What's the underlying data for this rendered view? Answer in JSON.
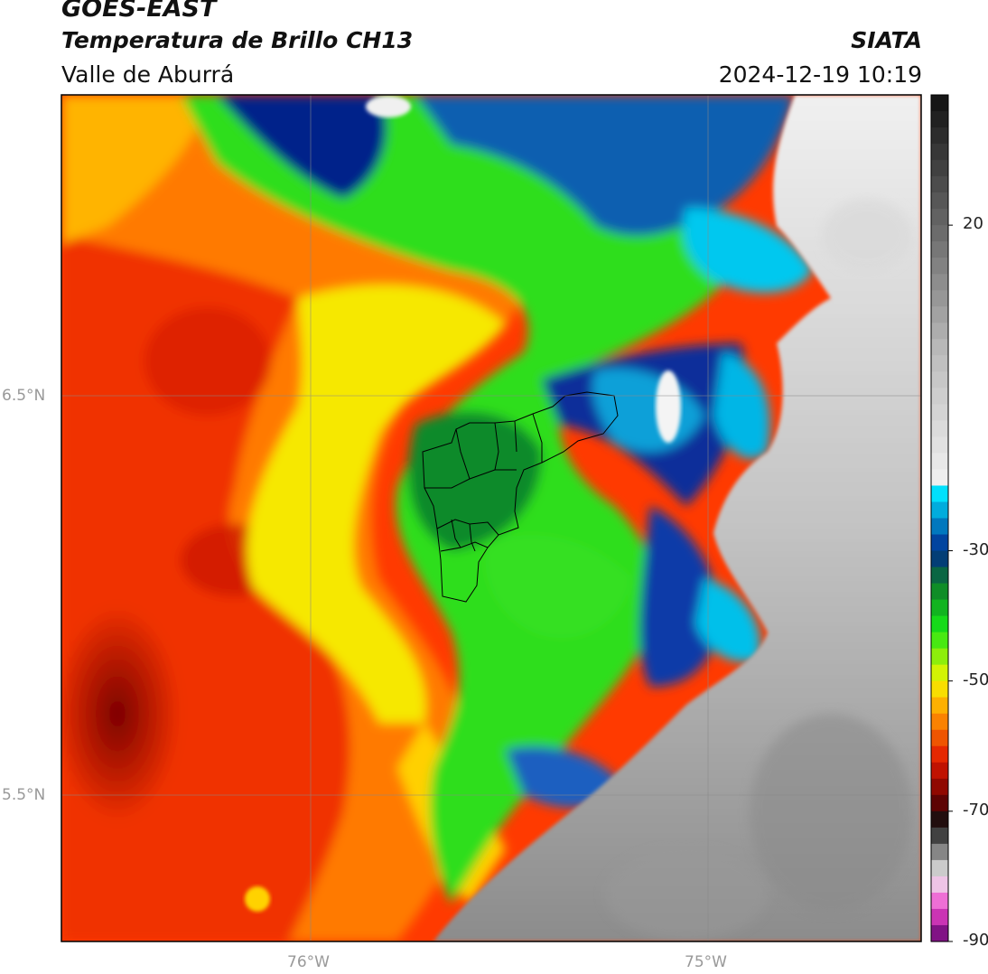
{
  "header": {
    "satellite": "GOES-EAST",
    "product": "Temperatura de Brillo CH13",
    "region": "Valle de Aburrá",
    "organization": "SIATA",
    "datetime": "2024-12-19 10:19"
  },
  "map": {
    "lat_labels": [
      "6.5°N",
      "5.5°N"
    ],
    "lon_labels": [
      "76°W",
      "75°W"
    ],
    "lat_range": [
      5.13,
      7.25
    ],
    "lon_range": [
      -76.62,
      -74.47
    ],
    "gridlines": true
  },
  "colorbar": {
    "unit_note": "",
    "ticks": [
      "20",
      "-30",
      "-50",
      "-70",
      "-90"
    ],
    "tick_values": [
      20,
      -30,
      -50,
      -70,
      -90
    ],
    "range": [
      -90,
      40
    ],
    "palette_stops": [
      {
        "value": 40,
        "color": "#111111"
      },
      {
        "value": 0,
        "color": "#bdbdbd"
      },
      {
        "value": -20,
        "color": "#f2f2f2"
      },
      {
        "value": -21,
        "color": "#00e5ff"
      },
      {
        "value": -30,
        "color": "#002a8f"
      },
      {
        "value": -35,
        "color": "#0d7a2a"
      },
      {
        "value": -42,
        "color": "#17e617"
      },
      {
        "value": -50,
        "color": "#f5f500"
      },
      {
        "value": -55,
        "color": "#ff9900"
      },
      {
        "value": -62,
        "color": "#e21a00"
      },
      {
        "value": -68,
        "color": "#6e0000"
      },
      {
        "value": -72,
        "color": "#111111"
      },
      {
        "value": -80,
        "color": "#eeeeee"
      },
      {
        "value": -85,
        "color": "#ee44cc"
      },
      {
        "value": -89,
        "color": "#7a1080"
      },
      {
        "value": -90,
        "color": "#ffffff"
      }
    ]
  }
}
